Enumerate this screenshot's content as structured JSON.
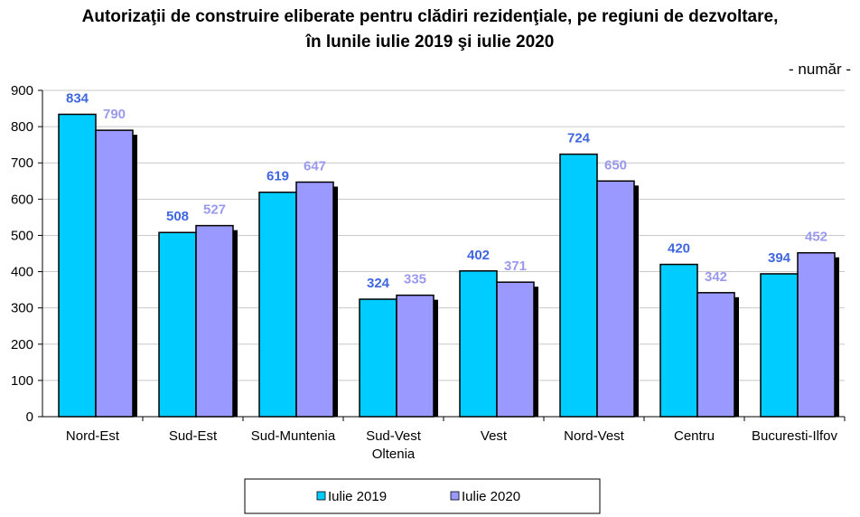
{
  "chart_data": {
    "type": "bar",
    "title": [
      "Autorizaţii de construire eliberate pentru clădiri rezidenţiale, pe regiuni de dezvoltare,",
      "în lunile iulie 2019 şi iulie 2020"
    ],
    "unit": "- număr -",
    "categories": [
      [
        "Nord-Est"
      ],
      [
        "Sud-Est"
      ],
      [
        "Sud-Muntenia"
      ],
      [
        "Sud-Vest",
        "Oltenia"
      ],
      [
        "Vest"
      ],
      [
        "Nord-Vest"
      ],
      [
        "Centru"
      ],
      [
        "Bucuresti-Ilfov"
      ]
    ],
    "series": [
      {
        "name": "Iulie 2019",
        "values": [
          834,
          508,
          619,
          324,
          402,
          724,
          420,
          394
        ],
        "color": "#00CCFF",
        "label_color": "#3F66E0"
      },
      {
        "name": "Iulie 2020",
        "values": [
          790,
          527,
          647,
          335,
          371,
          650,
          342,
          452
        ],
        "color": "#9999FF",
        "label_color": "#9999EE"
      }
    ],
    "ylim": [
      0,
      900
    ],
    "yticks": [
      0,
      100,
      200,
      300,
      400,
      500,
      600,
      700,
      800,
      900
    ],
    "grid": true,
    "legend": "bottom-center"
  }
}
